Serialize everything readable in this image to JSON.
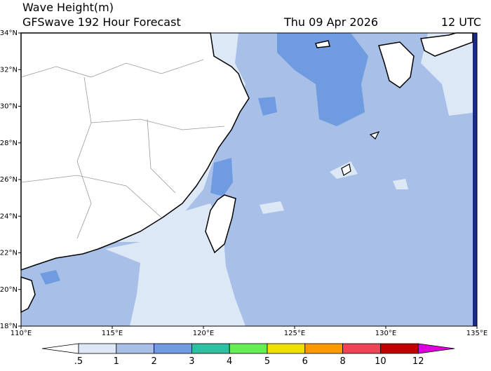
{
  "header": {
    "title": "Wave Height(m)",
    "subtitle": "GFSwave 192 Hour Forecast",
    "date": "Thu 09 Apr 2026",
    "time": "12 UTC"
  },
  "map": {
    "lon_range": [
      110,
      135
    ],
    "lat_range": [
      18,
      34
    ],
    "lat_ticks": [
      {
        "value": 18,
        "label": "18°N"
      },
      {
        "value": 20,
        "label": "20°N"
      },
      {
        "value": 22,
        "label": "22°N"
      },
      {
        "value": 24,
        "label": "24°N"
      },
      {
        "value": 26,
        "label": "26°N"
      },
      {
        "value": 28,
        "label": "28°N"
      },
      {
        "value": 30,
        "label": "30°N"
      },
      {
        "value": 32,
        "label": "32°N"
      },
      {
        "value": 34,
        "label": "34°N"
      }
    ],
    "lon_ticks": [
      {
        "value": 110,
        "label": "110°E"
      },
      {
        "value": 115,
        "label": "115°E"
      },
      {
        "value": 120,
        "label": "120°E"
      },
      {
        "value": 125,
        "label": "125°E"
      },
      {
        "value": 130,
        "label": "130°E"
      },
      {
        "value": 135,
        "label": "135°E"
      }
    ]
  },
  "colorbar": {
    "levels": [
      {
        "value": 0.5,
        "label": ".5"
      },
      1,
      2,
      3,
      4,
      5,
      6,
      8,
      10,
      12
    ],
    "colors": [
      "#ffffff",
      "#dde8f6",
      "#a8c0e8",
      "#6f9be0",
      "#2ec0a0",
      "#66ee55",
      "#f0e000",
      "#ff9900",
      "#ee4455",
      "#c00000",
      "#dd00dd"
    ]
  }
}
